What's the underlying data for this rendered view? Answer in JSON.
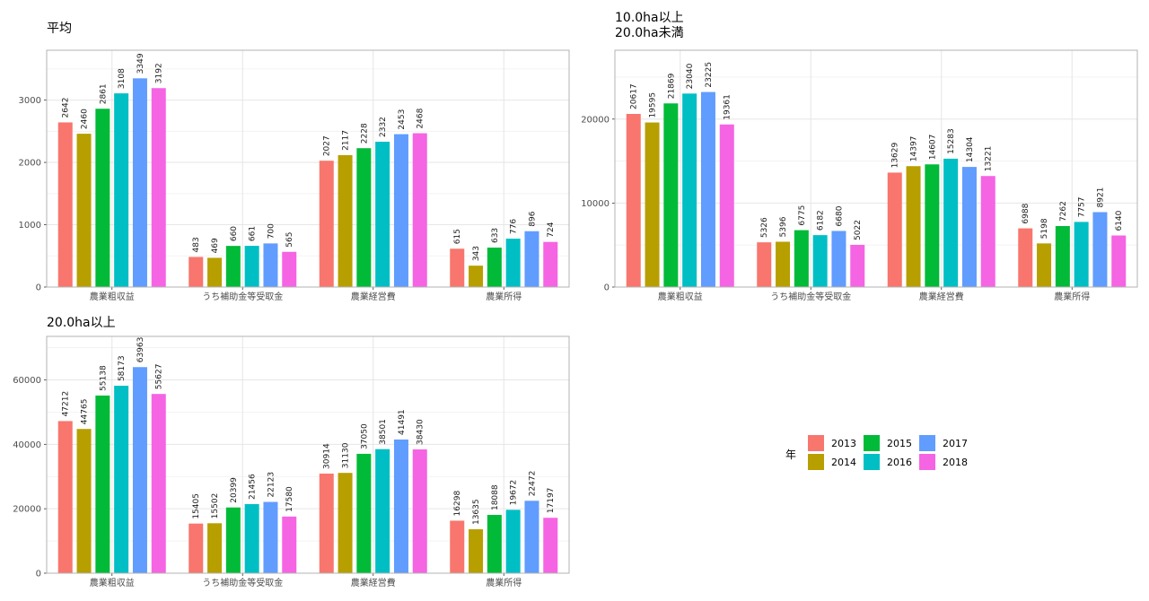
{
  "legend": {
    "title": "年",
    "items": [
      {
        "label": "2013",
        "color": "#F8766D"
      },
      {
        "label": "2014",
        "color": "#B79F00"
      },
      {
        "label": "2015",
        "color": "#00BA38"
      },
      {
        "label": "2016",
        "color": "#00BFC4"
      },
      {
        "label": "2017",
        "color": "#619CFF"
      },
      {
        "label": "2018",
        "color": "#F564E3"
      }
    ]
  },
  "chart_data": [
    {
      "type": "bar",
      "title_lines": [
        "平均"
      ],
      "categories": [
        "農業粗収益",
        "うち補助金等受取金",
        "農業経営費",
        "農業所得"
      ],
      "ylim": [
        0,
        3800
      ],
      "yticks": [
        0,
        1000,
        2000,
        3000
      ],
      "grid": true,
      "legend_position": "bottom-right",
      "series": [
        {
          "name": "2013",
          "values": [
            2642,
            483,
            2027,
            615
          ]
        },
        {
          "name": "2014",
          "values": [
            2460,
            469,
            2117,
            343
          ]
        },
        {
          "name": "2015",
          "values": [
            2861,
            660,
            2228,
            633
          ]
        },
        {
          "name": "2016",
          "values": [
            3108,
            661,
            2332,
            776
          ]
        },
        {
          "name": "2017",
          "values": [
            3349,
            700,
            2453,
            896
          ]
        },
        {
          "name": "2018",
          "values": [
            3192,
            565,
            2468,
            724
          ]
        }
      ]
    },
    {
      "type": "bar",
      "title_lines": [
        "10.0ha以上",
        "20.0ha未満"
      ],
      "categories": [
        "農業粗収益",
        "うち補助金等受取金",
        "農業経営費",
        "農業所得"
      ],
      "ylim": [
        0,
        28200
      ],
      "yticks": [
        0,
        10000,
        20000
      ],
      "grid": true,
      "legend_position": "bottom-right",
      "series": [
        {
          "name": "2013",
          "values": [
            20617,
            5326,
            13629,
            6988
          ]
        },
        {
          "name": "2014",
          "values": [
            19595,
            5396,
            14397,
            5198
          ]
        },
        {
          "name": "2015",
          "values": [
            21869,
            6775,
            14607,
            7262
          ]
        },
        {
          "name": "2016",
          "values": [
            23040,
            6182,
            15283,
            7757
          ]
        },
        {
          "name": "2017",
          "values": [
            23225,
            6680,
            14304,
            8921
          ]
        },
        {
          "name": "2018",
          "values": [
            19361,
            5022,
            13221,
            6140
          ]
        }
      ]
    },
    {
      "type": "bar",
      "title_lines": [
        "20.0ha以上"
      ],
      "categories": [
        "農業粗収益",
        "うち補助金等受取金",
        "農業経営費",
        "農業所得"
      ],
      "ylim": [
        0,
        73500
      ],
      "yticks": [
        0,
        20000,
        40000,
        60000
      ],
      "grid": true,
      "legend_position": "bottom-right",
      "series": [
        {
          "name": "2013",
          "values": [
            47212,
            15405,
            30914,
            16298
          ]
        },
        {
          "name": "2014",
          "values": [
            44765,
            15502,
            31130,
            13635
          ]
        },
        {
          "name": "2015",
          "values": [
            55138,
            20399,
            37050,
            18088
          ]
        },
        {
          "name": "2016",
          "values": [
            58173,
            21456,
            38501,
            19672
          ]
        },
        {
          "name": "2017",
          "values": [
            63963,
            22123,
            41491,
            22472
          ]
        },
        {
          "name": "2018",
          "values": [
            55627,
            17580,
            38430,
            17197
          ]
        }
      ]
    }
  ]
}
